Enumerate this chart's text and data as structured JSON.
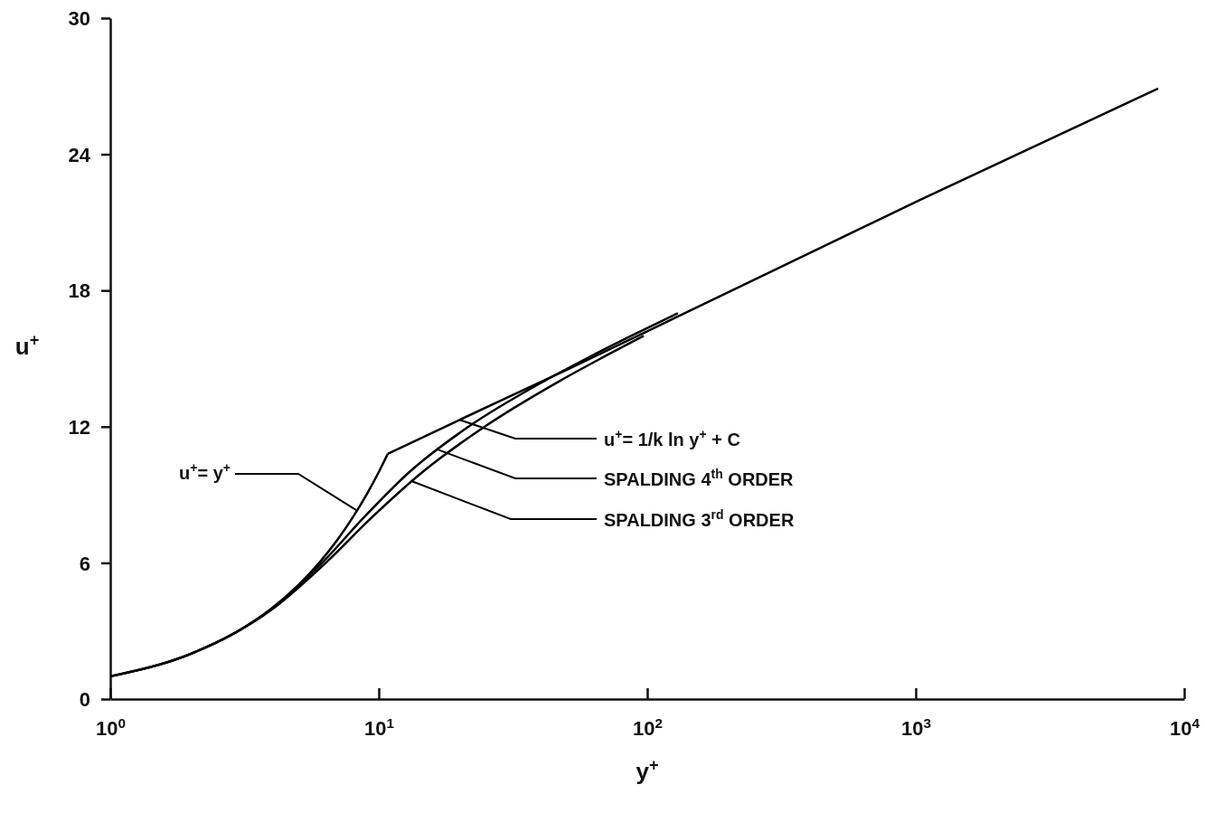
{
  "chart_data": {
    "type": "line",
    "xlabel": "y$^{+}$",
    "ylabel": "u$^{+}$",
    "log": "x",
    "xlim": [
      1,
      10000
    ],
    "ylim": [
      0,
      30
    ],
    "xticks": [
      {
        "value": 1,
        "label": "10$^{0}$"
      },
      {
        "value": 10,
        "label": "10$^{1}$"
      },
      {
        "value": 100,
        "label": "10$^{2}$"
      },
      {
        "value": 1000,
        "label": "10$^{3}$"
      },
      {
        "value": 10000,
        "label": "10$^{4}$"
      }
    ],
    "yticks": [
      0,
      6,
      12,
      18,
      24,
      30
    ],
    "grid": false,
    "marker": "none",
    "line_style": "solid",
    "annotations": [
      {
        "text": "u$^{+}$= y$^{+}$",
        "x": 8.3,
        "y": 8.3
      },
      {
        "text": "u$^{+}$= 1/k ln y$^{+}$ + C",
        "x": 20,
        "y": 12.3
      },
      {
        "text": "SPALDING 4$^{th}$ ORDER",
        "x": 16.5,
        "y": 11
      },
      {
        "text": "SPALDING 3$^{rd}$ ORDER",
        "x": 13.25,
        "y": 9.6
      }
    ],
    "series": [
      {
        "color": "#000000",
        "x": [
          1,
          1.5,
          2,
          3,
          4,
          5,
          6,
          7,
          8,
          9,
          10,
          10.8
        ],
        "values": [
          1,
          1.5,
          2,
          3,
          4,
          5,
          6,
          7,
          8,
          9,
          10,
          10.8
        ]
      },
      {
        "color": "#000000",
        "x": [
          10.8,
          20,
          50,
          100,
          1000,
          8000
        ],
        "values": [
          10.8,
          12.3,
          14.5,
          16.2,
          21.9,
          26.9
        ]
      },
      {
        "color": "#000000",
        "x": [
          1,
          2,
          4.02,
          6.15,
          8.8,
          13,
          21.6,
          41.2,
          59.3,
          87.1,
          130
        ],
        "values": [
          1,
          2,
          4,
          6,
          8,
          10,
          12,
          14,
          15,
          16,
          17
        ]
      },
      {
        "color": "#000000",
        "x": [
          1,
          2,
          4.06,
          6.35,
          9.42,
          14.55,
          24.8,
          47,
          67,
          97
        ],
        "values": [
          1,
          2,
          4,
          6,
          8,
          10,
          12,
          14,
          15,
          16
        ]
      }
    ]
  }
}
